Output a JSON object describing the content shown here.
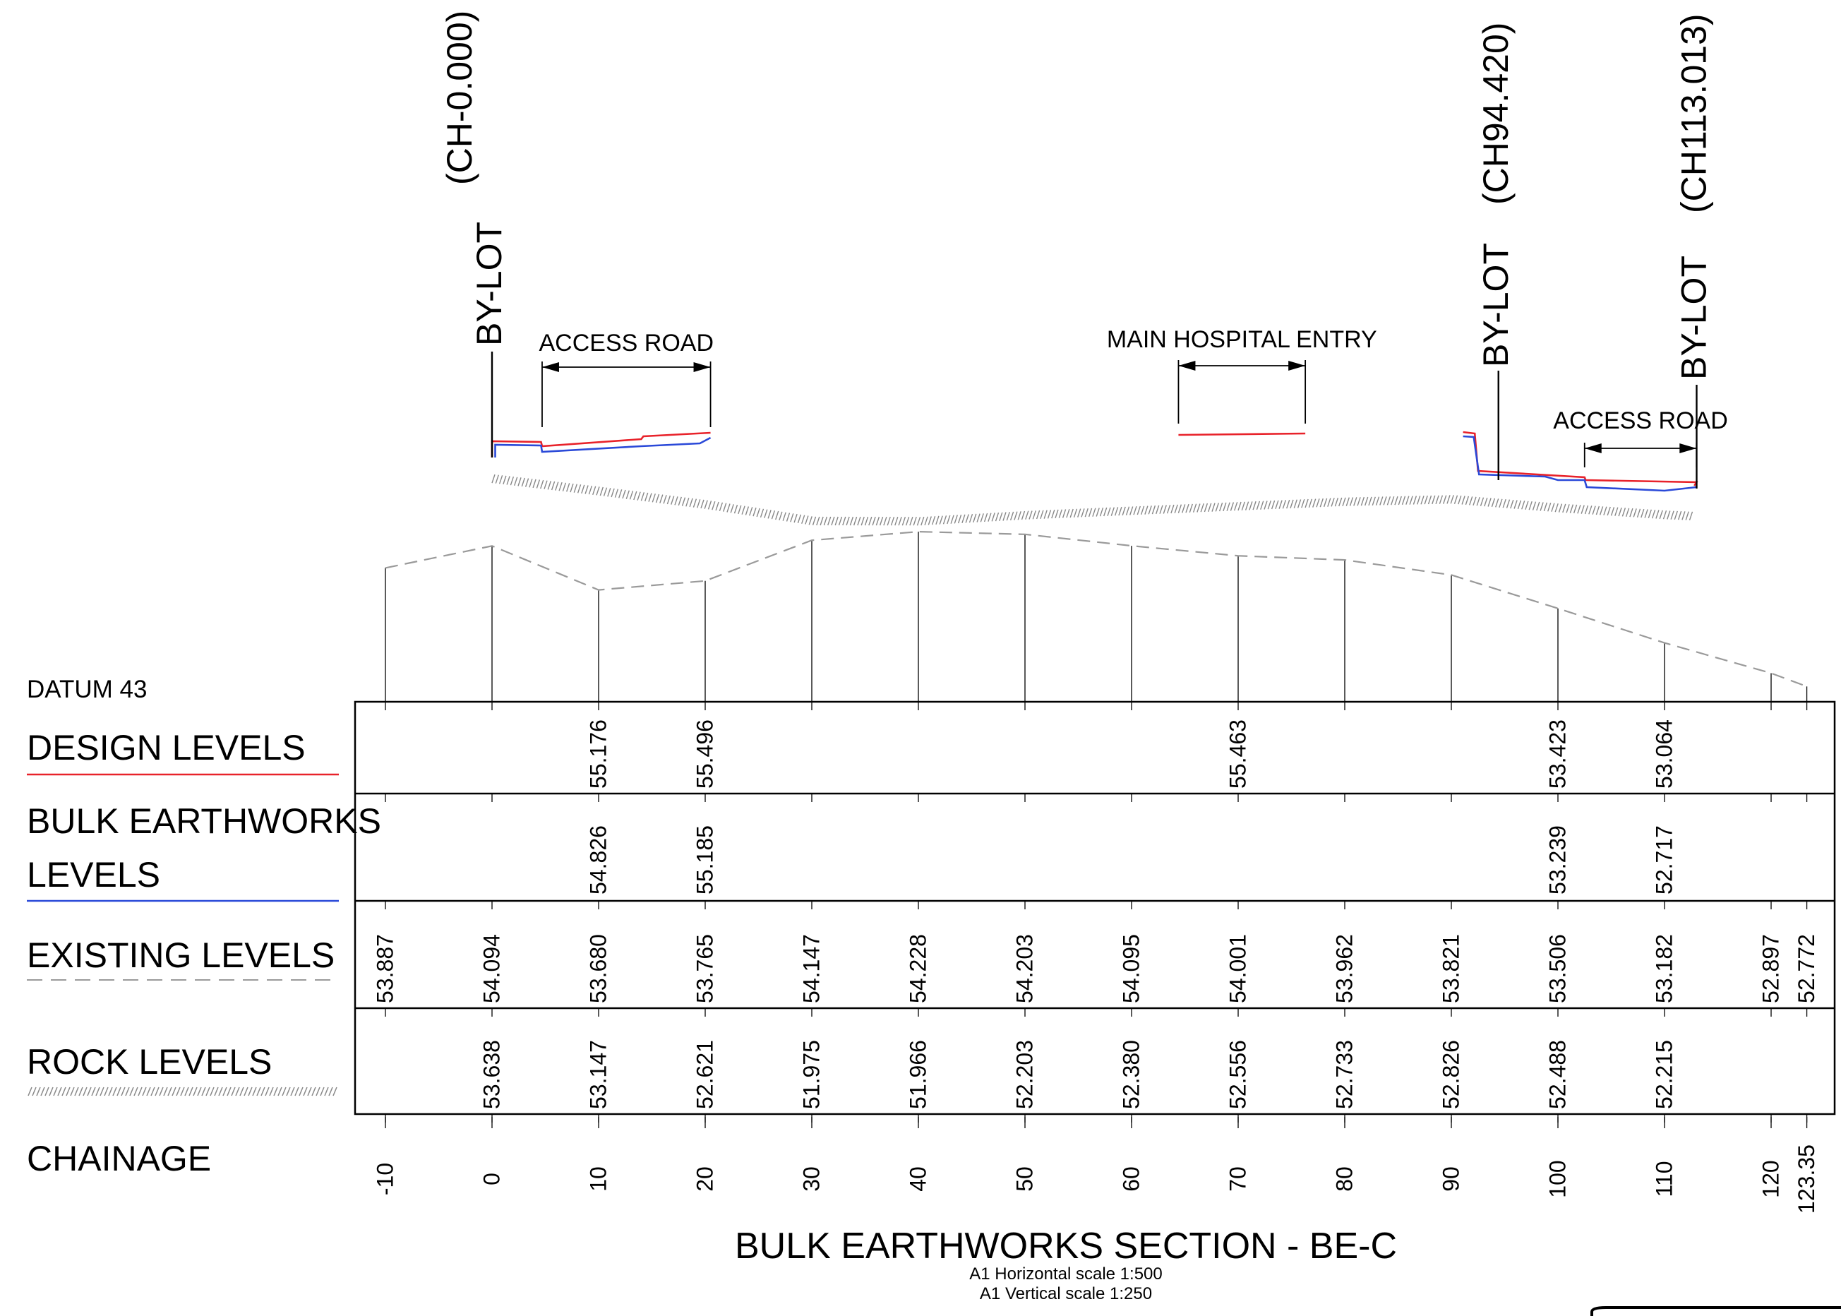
{
  "datum": {
    "label": "DATUM  43"
  },
  "rows": {
    "design": {
      "label": "DESIGN LEVELS",
      "color": "#e8222a"
    },
    "bulk": {
      "label_line1": "BULK EARTHWORKS",
      "label_line2": "LEVELS",
      "color": "#2a49d8"
    },
    "existing": {
      "label": "EXISTING LEVELS",
      "color": "#9a9a9a"
    },
    "rock": {
      "label": "ROCK LEVELS",
      "color": "#888888"
    },
    "chainage": {
      "label": "CHAINAGE"
    }
  },
  "chainage_ticks": [
    "-10",
    "0",
    "10",
    "20",
    "30",
    "40",
    "50",
    "60",
    "70",
    "80",
    "90",
    "100",
    "110",
    "120",
    "123.35"
  ],
  "chainage_values": [
    -10,
    0,
    10,
    20,
    30,
    40,
    50,
    60,
    70,
    80,
    90,
    100,
    110,
    120,
    123.35
  ],
  "existing_levels": [
    "53.887",
    "54.094",
    "53.680",
    "53.765",
    "54.147",
    "54.228",
    "54.203",
    "54.095",
    "54.001",
    "53.962",
    "53.821",
    "53.506",
    "53.182",
    "52.897",
    "52.772"
  ],
  "rock_levels": [
    {
      "ch": 0,
      "v": "53.638"
    },
    {
      "ch": 10,
      "v": "53.147"
    },
    {
      "ch": 20,
      "v": "52.621"
    },
    {
      "ch": 30,
      "v": "51.975"
    },
    {
      "ch": 40,
      "v": "51.966"
    },
    {
      "ch": 50,
      "v": "52.203"
    },
    {
      "ch": 60,
      "v": "52.380"
    },
    {
      "ch": 70,
      "v": "52.556"
    },
    {
      "ch": 80,
      "v": "52.733"
    },
    {
      "ch": 90,
      "v": "52.826"
    },
    {
      "ch": 100,
      "v": "52.488"
    },
    {
      "ch": 110,
      "v": "52.215"
    }
  ],
  "design_levels": [
    {
      "ch": 10,
      "v": "55.176"
    },
    {
      "ch": 20,
      "v": "55.496"
    },
    {
      "ch": 70,
      "v": "55.463"
    },
    {
      "ch": 100,
      "v": "53.423"
    },
    {
      "ch": 110,
      "v": "53.064"
    }
  ],
  "bulk_levels": [
    {
      "ch": 10,
      "v": "54.826"
    },
    {
      "ch": 20,
      "v": "55.185"
    },
    {
      "ch": 100,
      "v": "53.239"
    },
    {
      "ch": 110,
      "v": "52.717"
    }
  ],
  "markers": [
    {
      "ch": 0,
      "label": "BY-LOT",
      "ch_label": "(CH-0.000)"
    },
    {
      "ch": 94.42,
      "label": "BY-LOT",
      "ch_label": "(CH94.420)"
    },
    {
      "ch": 113.013,
      "label": "BY-LOT",
      "ch_label": "(CH113.013)"
    }
  ],
  "annotations": [
    {
      "label": "ACCESS ROAD",
      "from": 4.7,
      "to": 20.5
    },
    {
      "label": "MAIN HOSPITAL ENTRY",
      "from": 64.4,
      "to": 76.3
    },
    {
      "label": "ACCESS ROAD",
      "from": 102.5,
      "to": 113
    }
  ],
  "footer": {
    "title": "BULK EARTHWORKS SECTION - BE-C",
    "scale_h": "A1 Horizontal scale 1:500",
    "scale_v": "A1 Vertical scale 1:250"
  }
}
